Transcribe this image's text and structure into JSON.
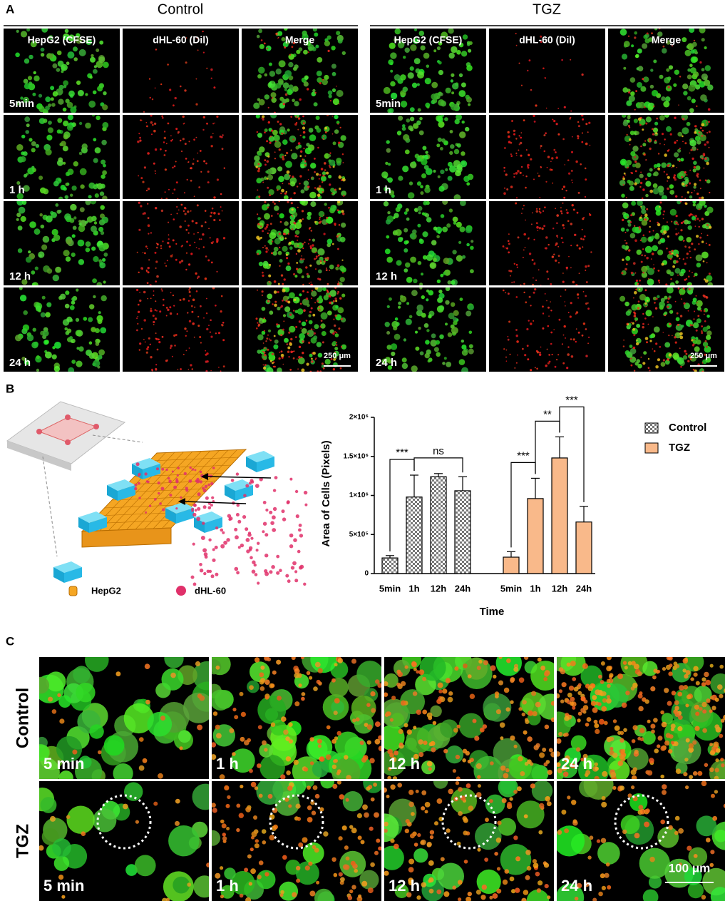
{
  "panel_a": {
    "letter": "A",
    "groups": [
      "Control",
      "TGZ"
    ],
    "columns": [
      "HepG2 (CFSE)",
      "dHL-60 (Dil)",
      "Merge"
    ],
    "rows": [
      "5min",
      "1 h",
      "12 h",
      "24 h"
    ],
    "scale_bar": "250 μm"
  },
  "panel_b": {
    "letter": "B",
    "legend": [
      "HepG2",
      "dHL-60"
    ]
  },
  "panel_c": {
    "letter": "C",
    "rows": [
      "Control",
      "TGZ"
    ],
    "times": [
      "5 min",
      "1 h",
      "12 h",
      "24 h"
    ],
    "scale_bar": "100 μm"
  },
  "chart_data": {
    "type": "bar",
    "xlabel": "Time",
    "ylabel": "Area of Cells (Pixels)",
    "categories": [
      "5min",
      "1h",
      "12h",
      "24h"
    ],
    "series": [
      {
        "name": "Control",
        "color": "#c8c8c8",
        "pattern": "checker",
        "values": [
          200000,
          980000,
          1240000,
          1060000
        ],
        "errors": [
          30000,
          280000,
          40000,
          180000
        ]
      },
      {
        "name": "TGZ",
        "color": "#f9b98a",
        "values": [
          210000,
          960000,
          1480000,
          660000
        ],
        "errors": [
          70000,
          260000,
          270000,
          200000
        ]
      }
    ],
    "ylim": [
      0,
      2000000
    ],
    "yticks": [
      0,
      {
        "value": 500000,
        "label": "5×10⁵"
      },
      {
        "value": 1000000,
        "label": "1×10⁶"
      },
      {
        "value": 1500000,
        "label": "1.5×10⁶"
      },
      {
        "value": 2000000,
        "label": "2×10⁶"
      }
    ],
    "annotations": [
      {
        "text": "***",
        "series": 0,
        "between": [
          0,
          1
        ]
      },
      {
        "text": "ns",
        "series": 0,
        "between": [
          1,
          3
        ]
      },
      {
        "text": "***",
        "series": 1,
        "between": [
          0,
          1
        ]
      },
      {
        "text": "**",
        "series": 1,
        "between": [
          1,
          2
        ]
      },
      {
        "text": "***",
        "series": 1,
        "between": [
          2,
          3
        ]
      }
    ],
    "legend": "right"
  }
}
